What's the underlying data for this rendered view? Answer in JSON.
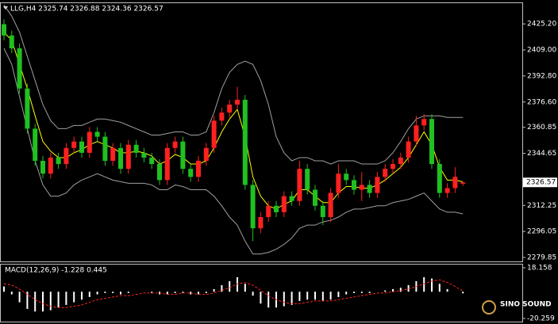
{
  "chart_data": [
    {
      "type": "candlestick",
      "title": "LLG,H4  2325.74 2326.88 2324.36 2326.57",
      "up_color": "#ff2020",
      "down_color": "#20c020",
      "open": [
        2425,
        2418,
        2410,
        2385,
        2360,
        2340,
        2332,
        2342,
        2338,
        2348,
        2352,
        2345,
        2358,
        2355,
        2340,
        2348,
        2335,
        2350,
        2345,
        2342,
        2338,
        2328,
        2348,
        2352,
        2335,
        2330,
        2340,
        2348,
        2365,
        2370,
        2375,
        2378,
        2325,
        2298,
        2305,
        2312,
        2308,
        2318,
        2315,
        2335,
        2322,
        2312,
        2305,
        2320,
        2332,
        2328,
        2322,
        2325,
        2320,
        2330,
        2335,
        2338,
        2342,
        2352,
        2362,
        2366,
        2338,
        2320,
        2323,
        2325.74
      ],
      "high": [
        2428,
        2421,
        2413,
        2388,
        2363,
        2343,
        2345,
        2345,
        2351,
        2355,
        2355,
        2361,
        2361,
        2358,
        2351,
        2351,
        2353,
        2353,
        2348,
        2345,
        2341,
        2351,
        2355,
        2355,
        2338,
        2343,
        2351,
        2368,
        2373,
        2378,
        2386,
        2381,
        2328,
        2308,
        2315,
        2315,
        2321,
        2321,
        2340,
        2338,
        2325,
        2315,
        2323,
        2338,
        2335,
        2331,
        2333,
        2328,
        2333,
        2338,
        2341,
        2345,
        2355,
        2368,
        2369,
        2369,
        2341,
        2326,
        2336,
        2326.88
      ],
      "low": [
        2415,
        2407,
        2382,
        2357,
        2337,
        2329,
        2329,
        2335,
        2335,
        2345,
        2342,
        2342,
        2352,
        2337,
        2337,
        2332,
        2332,
        2342,
        2339,
        2335,
        2325,
        2325,
        2345,
        2332,
        2327,
        2327,
        2337,
        2345,
        2362,
        2367,
        2372,
        2322,
        2290,
        2295,
        2302,
        2305,
        2305,
        2312,
        2312,
        2319,
        2309,
        2300,
        2302,
        2317,
        2325,
        2319,
        2315,
        2317,
        2317,
        2327,
        2332,
        2335,
        2339,
        2349,
        2359,
        2335,
        2317,
        2317,
        2320,
        2324.36
      ],
      "close": [
        2418,
        2410,
        2385,
        2360,
        2340,
        2332,
        2342,
        2338,
        2348,
        2352,
        2345,
        2358,
        2355,
        2340,
        2348,
        2335,
        2350,
        2345,
        2342,
        2338,
        2328,
        2348,
        2352,
        2335,
        2330,
        2340,
        2348,
        2365,
        2370,
        2375,
        2378,
        2325,
        2298,
        2305,
        2312,
        2308,
        2318,
        2315,
        2335,
        2322,
        2312,
        2305,
        2320,
        2332,
        2328,
        2322,
        2325,
        2320,
        2330,
        2335,
        2338,
        2342,
        2352,
        2362,
        2366,
        2338,
        2320,
        2323,
        2330,
        2326.57
      ],
      "overlays": [
        {
          "color": "#ffff00",
          "values": [
            2420,
            2415,
            2400,
            2385,
            2368,
            2352,
            2346,
            2342,
            2342,
            2345,
            2347,
            2350,
            2352,
            2350,
            2348,
            2345,
            2345,
            2346,
            2345,
            2343,
            2338,
            2340,
            2344,
            2342,
            2338,
            2338,
            2340,
            2348,
            2358,
            2366,
            2372,
            2355,
            2330,
            2318,
            2312,
            2310,
            2313,
            2315,
            2322,
            2322,
            2318,
            2314,
            2314,
            2320,
            2324,
            2324,
            2323,
            2323,
            2325,
            2328,
            2332,
            2336,
            2342,
            2350,
            2358,
            2350,
            2336,
            2328,
            2328,
            2327
          ]
        },
        {
          "color": "#a0a0a0",
          "values": [
            2437,
            2430,
            2420,
            2405,
            2390,
            2375,
            2365,
            2360,
            2360,
            2362,
            2362,
            2364,
            2366,
            2366,
            2365,
            2364,
            2362,
            2360,
            2358,
            2356,
            2356,
            2357,
            2358,
            2358,
            2356,
            2356,
            2358,
            2370,
            2385,
            2395,
            2400,
            2402,
            2400,
            2390,
            2375,
            2355,
            2345,
            2340,
            2342,
            2342,
            2340,
            2340,
            2338,
            2340,
            2340,
            2340,
            2338,
            2338,
            2338,
            2340,
            2345,
            2352,
            2360,
            2366,
            2368,
            2368,
            2368,
            2367,
            2367,
            2367
          ]
        },
        {
          "color": "#a0a0a0",
          "values": [
            2410,
            2400,
            2380,
            2360,
            2340,
            2325,
            2318,
            2318,
            2320,
            2325,
            2328,
            2330,
            2332,
            2330,
            2328,
            2327,
            2326,
            2326,
            2326,
            2325,
            2322,
            2322,
            2325,
            2324,
            2322,
            2322,
            2322,
            2318,
            2312,
            2305,
            2300,
            2290,
            2282,
            2282,
            2283,
            2285,
            2288,
            2292,
            2298,
            2300,
            2300,
            2302,
            2303,
            2305,
            2308,
            2310,
            2310,
            2311,
            2312,
            2312,
            2314,
            2315,
            2316,
            2318,
            2320,
            2315,
            2310,
            2308,
            2308,
            2307
          ]
        }
      ],
      "ylim": [
        2277.4,
        2437.6
      ],
      "yticks": [
        {
          "value": 2425.2,
          "label": "2425.20"
        },
        {
          "value": 2409,
          "label": "2409.00"
        },
        {
          "value": 2392.8,
          "label": "2392.80"
        },
        {
          "value": 2376.6,
          "label": "2376.60"
        },
        {
          "value": 2360.85,
          "label": "2360.85"
        },
        {
          "value": 2344.65,
          "label": "2344.65"
        },
        {
          "value": 2312.25,
          "label": "2312.25"
        },
        {
          "value": 2296.05,
          "label": "2296.05"
        },
        {
          "value": 2279.85,
          "label": "2279.85"
        }
      ],
      "last_price": 2326.57
    },
    {
      "type": "macd",
      "title": "MACD(12,26,9) -1.228 0.445",
      "color": "#ffffff",
      "signal_color": "#ff2020",
      "values": [
        4,
        -2,
        -8,
        -13,
        -15,
        -15,
        -14,
        -12,
        -10,
        -8,
        -6,
        -4,
        -2,
        -1,
        -1,
        -2,
        -1,
        0,
        0,
        -1,
        -2,
        -2,
        -1,
        -1,
        -2,
        -2,
        -1,
        2,
        5,
        8,
        11,
        6,
        -3,
        -9,
        -12,
        -12,
        -11,
        -10,
        -7,
        -6,
        -6,
        -7,
        -6,
        -4,
        -2,
        -1,
        -1,
        -1,
        0,
        1,
        2,
        3,
        5,
        8,
        11,
        10,
        6,
        2,
        0,
        -1.228
      ],
      "signal": [
        6,
        5,
        2,
        -2,
        -6,
        -9,
        -11,
        -12,
        -12,
        -11,
        -10,
        -8,
        -6,
        -5,
        -4,
        -3,
        -3,
        -2,
        -1,
        -1,
        -1,
        -2,
        -2,
        -1,
        -1,
        -2,
        -2,
        -1,
        1,
        3,
        6,
        7,
        5,
        1,
        -3,
        -6,
        -8,
        -9,
        -9,
        -8,
        -7,
        -7,
        -7,
        -6,
        -5,
        -4,
        -3,
        -2,
        -1,
        -1,
        0,
        1,
        2,
        4,
        6,
        8,
        9,
        7,
        4,
        0.445
      ],
      "ylim": [
        -20.259,
        18.158
      ],
      "yticks": [
        18.158,
        -20.259
      ]
    }
  ],
  "logo": "SINO SOUND"
}
